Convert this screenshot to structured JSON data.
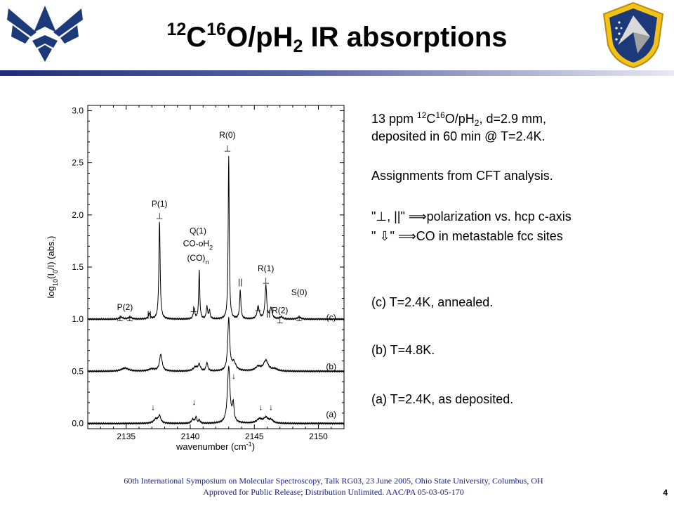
{
  "title": {
    "mass_c": "12",
    "elem_c": "C",
    "mass_o": "16",
    "elem_o": "O/pH",
    "sub_h": "2",
    "rest": " IR absorptions"
  },
  "notes": {
    "sample_line1": {
      "a": "13 ppm ",
      "b": "12",
      "c": "C",
      "d": "16",
      "e": "O/pH",
      "f": "2",
      "g": ", d=2.9 mm,"
    },
    "sample_line2": "deposited in 60 min @ T=2.4K.",
    "assignments": "Assignments from CFT analysis.",
    "polarization": {
      "q1": "\"",
      "symbols": "⊥, ||",
      "q2": "\" ",
      "implies": "⟹",
      "text": "polarization vs. hcp c-axis"
    },
    "metastable": {
      "q1": "\" ",
      "symbol": "⇩",
      "q2": "\" ",
      "implies": "⟹",
      "text": "CO in metastable fcc sites"
    },
    "trace_c": "(c)  T=2.4K, annealed.",
    "trace_b": "(b)  T=4.8K.",
    "trace_a": "(a)  T=2.4K, as deposited."
  },
  "footer": {
    "line1": "60th International Symposium on Molecular Spectroscopy, Talk RG03, 23 June 2005, Ohio State University, Columbus, OH",
    "line2": "Approved for Public Release; Distribution Unlimited.   AAC/PA 05-03-05-170"
  },
  "slide_number": "4",
  "colors": {
    "divider_start": "#1f2e7a",
    "divider_end": "#e9e9f2",
    "footer_text": "#1a1a8c",
    "logo_blue": "#1c3a7a",
    "shield_yellow": "#f2c21a"
  },
  "icons": {
    "left_logo": "air-force-wings-logo",
    "right_logo": "afrl-shield-logo"
  },
  "chart_data": {
    "type": "line",
    "xlabel": "wavenumber (cm-1)",
    "ylabel": "log10(I0/I) (abs.)",
    "xlim": [
      2132.0,
      2152.0
    ],
    "ylim": [
      -0.05,
      3.05
    ],
    "xticks": [
      2135,
      2140,
      2145,
      2150
    ],
    "xtick_labels": [
      "2135",
      "2140",
      "2145",
      "2150"
    ],
    "yticks": [
      0.0,
      0.5,
      1.0,
      1.5,
      2.0,
      2.5,
      3.0
    ],
    "ytick_labels": [
      "0.0",
      "0.5",
      "1.0",
      "1.5",
      "2.0",
      "2.5",
      "3.0"
    ],
    "grid": false,
    "series": [
      {
        "name": "(c)",
        "baseline": 1.0,
        "peaks": [
          {
            "x": 2134.6,
            "h": 0.02,
            "w": 0.15
          },
          {
            "x": 2135.3,
            "h": 0.02,
            "w": 0.15
          },
          {
            "x": 2136.8,
            "h": 0.05,
            "w": 0.08
          },
          {
            "x": 2137.6,
            "h": 0.93,
            "w": 0.06
          },
          {
            "x": 2140.3,
            "h": 0.1,
            "w": 0.07
          },
          {
            "x": 2140.7,
            "h": 0.47,
            "w": 0.05
          },
          {
            "x": 2141.3,
            "h": 0.12,
            "w": 0.06
          },
          {
            "x": 2141.5,
            "h": 0.08,
            "w": 0.06
          },
          {
            "x": 2143.0,
            "h": 1.56,
            "w": 0.05
          },
          {
            "x": 2143.9,
            "h": 0.27,
            "w": 0.06
          },
          {
            "x": 2145.3,
            "h": 0.12,
            "w": 0.1
          },
          {
            "x": 2145.9,
            "h": 0.32,
            "w": 0.08
          },
          {
            "x": 2146.3,
            "h": 0.1,
            "w": 0.1
          },
          {
            "x": 2147.1,
            "h": 0.02,
            "w": 0.15
          },
          {
            "x": 2148.5,
            "h": 0.02,
            "w": 0.15
          }
        ]
      },
      {
        "name": "(b)",
        "baseline": 0.5,
        "peaks": [
          {
            "x": 2134.9,
            "h": 0.03,
            "w": 0.35
          },
          {
            "x": 2137.0,
            "h": 0.02,
            "w": 0.3
          },
          {
            "x": 2137.7,
            "h": 0.16,
            "w": 0.12
          },
          {
            "x": 2140.4,
            "h": 0.04,
            "w": 0.2
          },
          {
            "x": 2140.7,
            "h": 0.06,
            "w": 0.1
          },
          {
            "x": 2141.3,
            "h": 0.08,
            "w": 0.08
          },
          {
            "x": 2143.0,
            "h": 0.5,
            "w": 0.09
          },
          {
            "x": 2143.4,
            "h": 0.08,
            "w": 0.2
          },
          {
            "x": 2145.3,
            "h": 0.04,
            "w": 0.25
          },
          {
            "x": 2145.9,
            "h": 0.1,
            "w": 0.22
          },
          {
            "x": 2146.6,
            "h": 0.02,
            "w": 0.25
          }
        ]
      },
      {
        "name": "(a)",
        "baseline": 0.0,
        "peaks": [
          {
            "x": 2137.3,
            "h": 0.04,
            "w": 0.18
          },
          {
            "x": 2137.6,
            "h": 0.07,
            "w": 0.12
          },
          {
            "x": 2140.2,
            "h": 0.04,
            "w": 0.12
          },
          {
            "x": 2140.45,
            "h": 0.06,
            "w": 0.06
          },
          {
            "x": 2140.7,
            "h": 0.03,
            "w": 0.08
          },
          {
            "x": 2143.0,
            "h": 0.54,
            "w": 0.12
          },
          {
            "x": 2143.35,
            "h": 0.17,
            "w": 0.08
          },
          {
            "x": 2145.4,
            "h": 0.04,
            "w": 0.25
          },
          {
            "x": 2145.9,
            "h": 0.05,
            "w": 0.2
          },
          {
            "x": 2146.3,
            "h": 0.03,
            "w": 0.2
          }
        ]
      }
    ],
    "annotations": [
      {
        "text": "R(0)",
        "x": 2142.9,
        "y": 2.74
      },
      {
        "text": "⊥",
        "x": 2142.9,
        "y": 2.61
      },
      {
        "text": "P(1)",
        "x": 2137.6,
        "y": 2.08
      },
      {
        "text": "⊥",
        "x": 2137.6,
        "y": 1.96
      },
      {
        "text": "Q(1)",
        "x": 2140.6,
        "y": 1.82
      },
      {
        "text": "CO-oH2",
        "x": 2140.6,
        "y": 1.7
      },
      {
        "text": "(CO)n",
        "x": 2140.6,
        "y": 1.56
      },
      {
        "text": "⊥",
        "x": 2140.25,
        "y": 1.07
      },
      {
        "text": "||",
        "x": 2143.9,
        "y": 1.33
      },
      {
        "text": "R(1)",
        "x": 2145.9,
        "y": 1.46
      },
      {
        "text": "⊥",
        "x": 2145.9,
        "y": 1.34
      },
      {
        "text": "⊥",
        "x": 2145.3,
        "y": 1.08
      },
      {
        "text": "||",
        "x": 2146.1,
        "y": 1.03
      },
      {
        "text": "R(2)",
        "x": 2147.0,
        "y": 1.06
      },
      {
        "text": "⊥",
        "x": 2147.0,
        "y": 0.96
      },
      {
        "text": "S(0)",
        "x": 2148.5,
        "y": 1.23
      },
      {
        "text": "⊥",
        "x": 2148.5,
        "y": 0.98
      },
      {
        "text": "P(2)",
        "x": 2134.9,
        "y": 1.09
      },
      {
        "text": "⊥ ⊥",
        "x": 2134.9,
        "y": 0.98
      },
      {
        "text": "||",
        "x": 2136.8,
        "y": 1.02
      },
      {
        "text": "(c)",
        "x": 2151.0,
        "y": 0.99
      },
      {
        "text": "(b)",
        "x": 2151.0,
        "y": 0.52
      },
      {
        "text": "(a)",
        "x": 2151.0,
        "y": 0.06
      },
      {
        "text": "↓",
        "x": 2143.4,
        "y": 0.43
      },
      {
        "text": "↓",
        "x": 2137.1,
        "y": 0.13
      },
      {
        "text": "↓",
        "x": 2140.3,
        "y": 0.18
      },
      {
        "text": "↓",
        "x": 2145.5,
        "y": 0.13
      },
      {
        "text": "↓",
        "x": 2146.3,
        "y": 0.13
      }
    ]
  }
}
